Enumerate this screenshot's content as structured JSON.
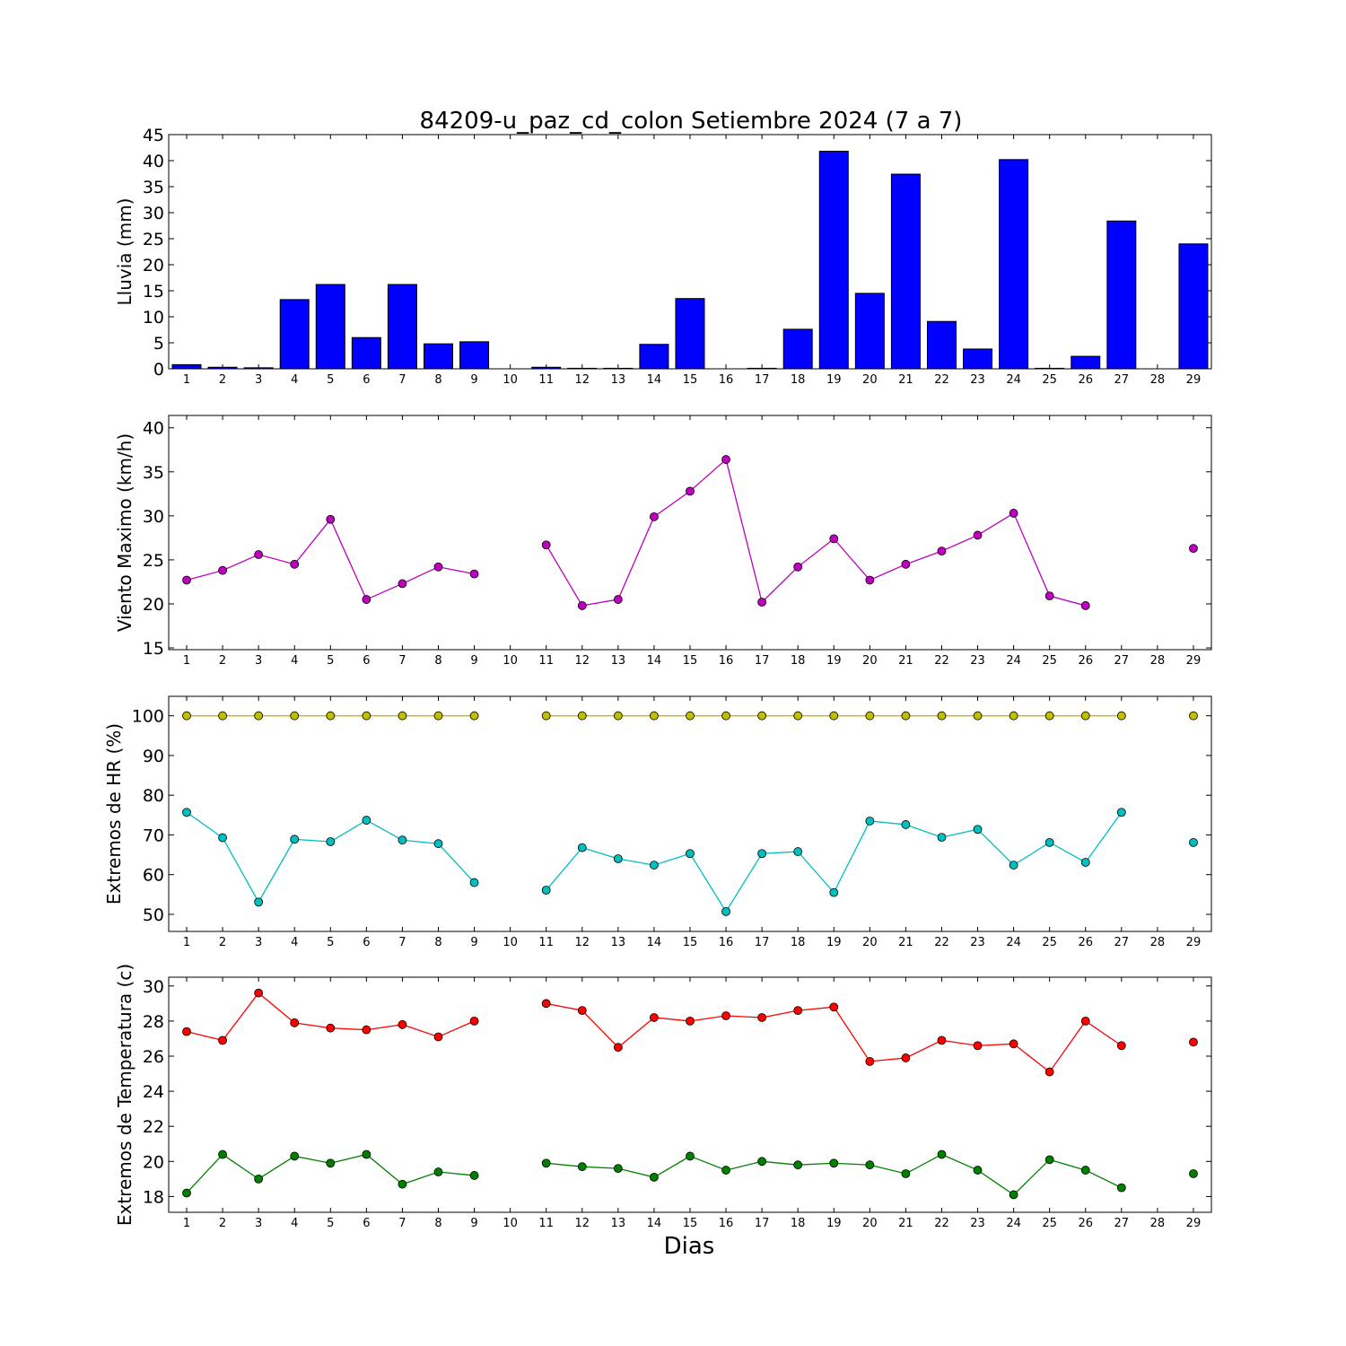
{
  "chart_data": {
    "title": "84209-u_paz_cd_colon Setiembre 2024  (7 a 7)",
    "xlabel": "Dias",
    "x_ticks": [
      "1",
      "2",
      "3",
      "4",
      "5",
      "6",
      "7",
      "8",
      "9",
      "10",
      "11",
      "12",
      "13",
      "14",
      "15",
      "16",
      "17",
      "18",
      "19",
      "20",
      "21",
      "22",
      "23",
      "24",
      "25",
      "26",
      "27",
      "28",
      "29"
    ],
    "panels": [
      {
        "id": "lluvia",
        "type": "bar",
        "ylabel": "Lluvia (mm)",
        "ylim": [
          0,
          45
        ],
        "yticks": [
          0,
          5,
          10,
          15,
          20,
          25,
          30,
          35,
          40,
          45
        ],
        "series": [
          {
            "color": "#0000ff",
            "values": [
              0.8,
              0.3,
              0.2,
              13.3,
              16.2,
              6.0,
              16.2,
              4.8,
              5.2,
              0,
              0.3,
              0.1,
              0.1,
              4.7,
              13.5,
              0,
              0.1,
              7.6,
              41.8,
              14.5,
              37.4,
              9.1,
              3.8,
              40.2,
              0.1,
              2.4,
              28.4,
              0,
              24.0
            ]
          }
        ]
      },
      {
        "id": "viento",
        "type": "line",
        "ylabel": "Viento Maximo (km/h)",
        "ylim": [
          14.8,
          41.4
        ],
        "yticks": [
          15,
          20,
          25,
          30,
          35,
          40
        ],
        "series": [
          {
            "color": "#bf00bf",
            "values": [
              22.7,
              23.8,
              25.6,
              24.5,
              29.6,
              20.5,
              22.3,
              24.2,
              23.4,
              null,
              26.7,
              19.8,
              20.5,
              29.9,
              32.8,
              36.4,
              20.2,
              24.2,
              27.4,
              22.7,
              24.5,
              26.0,
              27.8,
              30.3,
              20.9,
              19.8,
              null,
              null,
              26.3
            ]
          }
        ]
      },
      {
        "id": "hr",
        "type": "line",
        "ylabel": "Extremos de HR (%)",
        "ylim": [
          45.7,
          104.9
        ],
        "yticks": [
          50,
          60,
          70,
          80,
          90,
          100
        ],
        "series": [
          {
            "color": "#bfbf00",
            "values": [
              100,
              100,
              100,
              100,
              100,
              100,
              100,
              100,
              100,
              null,
              100,
              100,
              100,
              100,
              100,
              100,
              100,
              100,
              100,
              100,
              100,
              100,
              100,
              100,
              100,
              100,
              100,
              null,
              100
            ]
          },
          {
            "color": "#00bfbf",
            "values": [
              75.7,
              69.3,
              53.1,
              68.9,
              68.3,
              73.7,
              68.7,
              67.8,
              58.0,
              null,
              56.1,
              66.8,
              64.0,
              62.4,
              65.3,
              50.7,
              65.3,
              65.8,
              55.5,
              73.5,
              72.6,
              69.4,
              71.4,
              62.4,
              68.1,
              63.1,
              75.7,
              null,
              68.1
            ]
          }
        ]
      },
      {
        "id": "temp",
        "type": "line",
        "ylabel": "Extremos de Temperatura (c)",
        "ylim": [
          17.1,
          30.5
        ],
        "yticks": [
          18,
          20,
          22,
          24,
          26,
          28,
          30
        ],
        "series": [
          {
            "color": "#ff0000",
            "values": [
              27.4,
              26.9,
              29.6,
              27.9,
              27.6,
              27.5,
              27.8,
              27.1,
              28.0,
              null,
              29.0,
              28.6,
              26.5,
              28.2,
              28.0,
              28.3,
              28.2,
              28.6,
              28.8,
              25.7,
              25.9,
              26.9,
              26.6,
              26.7,
              25.1,
              28.0,
              26.6,
              null,
              26.8
            ]
          },
          {
            "color": "#008000",
            "values": [
              18.2,
              20.4,
              19.0,
              20.3,
              19.9,
              20.4,
              18.7,
              19.4,
              19.2,
              null,
              19.9,
              19.7,
              19.6,
              19.1,
              20.3,
              19.5,
              20.0,
              19.8,
              19.9,
              19.8,
              19.3,
              20.4,
              19.5,
              18.1,
              20.1,
              19.5,
              18.5,
              null,
              19.3
            ]
          }
        ]
      }
    ]
  }
}
